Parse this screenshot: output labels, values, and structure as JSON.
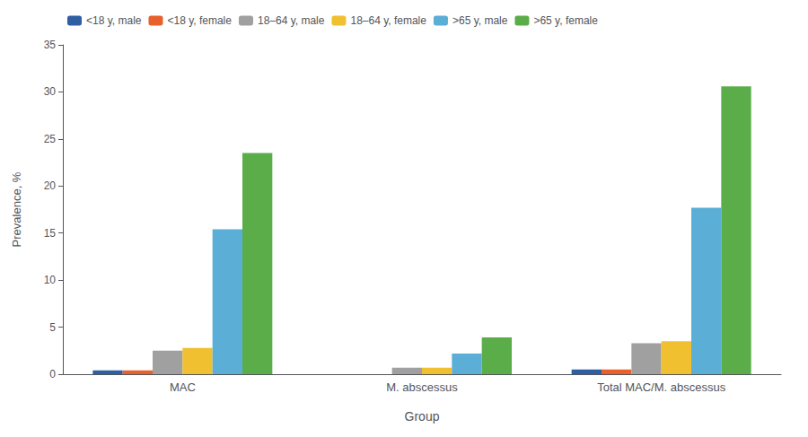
{
  "chart_data": {
    "type": "bar",
    "categories": [
      "MAC",
      "M. abscessus",
      "Total MAC/M. abscessus"
    ],
    "series": [
      {
        "name": "<18 y, male",
        "color": "#2E5FA3",
        "values": [
          0.4,
          0.0,
          0.5
        ]
      },
      {
        "name": "<18 y, female",
        "color": "#E8602C",
        "values": [
          0.4,
          0.0,
          0.5
        ]
      },
      {
        "name": "18–64 y, male",
        "color": "#A0A0A0",
        "values": [
          2.5,
          0.7,
          3.3
        ]
      },
      {
        "name": "18–64 y, female",
        "color": "#F0C030",
        "values": [
          2.8,
          0.7,
          3.5
        ]
      },
      {
        "name": ">65 y, male",
        "color": "#5BAED6",
        "values": [
          15.4,
          2.2,
          17.7
        ]
      },
      {
        "name": ">65 y, female",
        "color": "#5BAD4A",
        "values": [
          23.5,
          3.9,
          30.6
        ]
      }
    ],
    "ylabel": "Prevalence, %",
    "xlabel": "Group",
    "ylim": [
      0,
      35
    ],
    "yticks": [
      0,
      5,
      10,
      15,
      20,
      25,
      30,
      35
    ],
    "grid": false,
    "legend": "upper left"
  }
}
